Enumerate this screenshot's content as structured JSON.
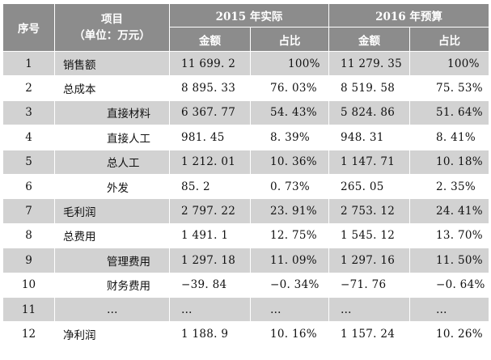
{
  "header": {
    "index_label": "序号",
    "item_label_line1": "项目",
    "item_label_line2": "（单位：万元）",
    "group_2015": "2015 年实际",
    "group_2016": "2016 年预算",
    "amount_label": "金额",
    "ratio_label": "占比"
  },
  "rows": [
    {
      "idx": "1",
      "item": "销售额",
      "level": 1,
      "a2015": "11 699. 2",
      "p2015": "100%",
      "a2016": "11 279. 35",
      "p2016": "100%"
    },
    {
      "idx": "2",
      "item": "总成本",
      "level": 1,
      "a2015": "8 895. 33",
      "p2015": "76. 03%",
      "a2016": "8 519. 58",
      "p2016": "75. 53%"
    },
    {
      "idx": "3",
      "item": "直接材料",
      "level": 2,
      "a2015": "6 367. 77",
      "p2015": "54. 43%",
      "a2016": "5 824. 86",
      "p2016": "51. 64%"
    },
    {
      "idx": "4",
      "item": "直接人工",
      "level": 2,
      "a2015": "981. 45",
      "p2015": "8. 39%",
      "a2016": "948. 31",
      "p2016": "8. 41%"
    },
    {
      "idx": "5",
      "item": "总人工",
      "level": 2,
      "a2015": "1 212. 01",
      "p2015": "10. 36%",
      "a2016": "1 147. 71",
      "p2016": "10. 18%"
    },
    {
      "idx": "6",
      "item": "外发",
      "level": 2,
      "a2015": "85. 2",
      "p2015": "0. 73%",
      "a2016": "265. 05",
      "p2016": "2. 35%"
    },
    {
      "idx": "7",
      "item": "毛利润",
      "level": 1,
      "a2015": "2 797. 22",
      "p2015": "23. 91%",
      "a2016": "2 753. 12",
      "p2016": "24. 41%"
    },
    {
      "idx": "8",
      "item": "总费用",
      "level": 1,
      "a2015": "1 491. 1",
      "p2015": "12. 75%",
      "a2016": "1 545. 12",
      "p2016": "13. 70%"
    },
    {
      "idx": "9",
      "item": "管理费用",
      "level": 2,
      "a2015": "1 297. 18",
      "p2015": "11. 09%",
      "a2016": "1 297. 16",
      "p2016": "11. 50%"
    },
    {
      "idx": "10",
      "item": "财务费用",
      "level": 2,
      "a2015": "−39. 84",
      "p2015": "−0. 34%",
      "a2016": "−71. 76",
      "p2016": "−0. 64%"
    },
    {
      "idx": "11",
      "item": "…",
      "level": 2,
      "a2015": "…",
      "p2015": "…",
      "a2016": "…",
      "p2016": "…"
    },
    {
      "idx": "12",
      "item": "净利润",
      "level": 1,
      "a2015": "1 188. 9",
      "p2015": "10. 16%",
      "a2016": "1 157. 24",
      "p2016": "10. 26%"
    }
  ],
  "colors": {
    "header_bg": "#8c8c8c",
    "stripe_bg": "#d2d2d2",
    "plain_bg": "#ffffff"
  }
}
